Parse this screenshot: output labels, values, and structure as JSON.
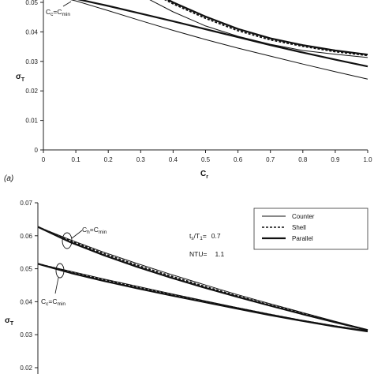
{
  "chart_data": [
    {
      "panel": "top",
      "type": "line",
      "xlabel": "C_r",
      "ylabel": "σ_T",
      "xlim": [
        0,
        1
      ],
      "ylim": [
        0,
        0.05
      ],
      "x_ticks": [
        "0",
        "0.1",
        "0.2",
        "0.3",
        "0.4",
        "0.5",
        "0.6",
        "0.7",
        "0.8",
        "0.9",
        "1.0"
      ],
      "y_ticks": [
        "0",
        "0.01",
        "0.02",
        "0.03",
        "0.04",
        "0.05"
      ],
      "panel_label": "(a)",
      "annotation": {
        "sub": "c",
        "rhs": "min",
        "pre": "C",
        "eq": "=C"
      },
      "series": [
        {
          "style": "thin",
          "x": [
            0.05,
            0.1,
            0.2,
            0.3,
            0.4,
            0.5,
            0.6,
            0.7,
            0.8,
            0.9,
            1.0
          ],
          "y": [
            0.0518,
            0.0505,
            0.0472,
            0.0438,
            0.0405,
            0.0374,
            0.0345,
            0.0318,
            0.0291,
            0.0265,
            0.024
          ]
        },
        {
          "style": "thick",
          "x": [
            0.05,
            0.1,
            0.2,
            0.3,
            0.4,
            0.5,
            0.6,
            0.7,
            0.8,
            0.9,
            1.0
          ],
          "y": [
            0.0522,
            0.0512,
            0.0488,
            0.0462,
            0.0436,
            0.0409,
            0.0382,
            0.0355,
            0.033,
            0.0306,
            0.0283
          ]
        },
        {
          "style": "thin",
          "x": [
            0.29,
            0.3,
            0.4,
            0.5,
            0.6,
            0.7,
            0.8,
            0.9,
            1.0
          ],
          "y": [
            0.0535,
            0.0525,
            0.0468,
            0.042,
            0.0385,
            0.0358,
            0.0337,
            0.0324,
            0.0313
          ]
        },
        {
          "style": "dashed",
          "x": [
            0.33,
            0.4,
            0.5,
            0.6,
            0.7,
            0.8,
            0.9,
            1.0
          ],
          "y": [
            0.0535,
            0.0495,
            0.0446,
            0.0404,
            0.0373,
            0.0351,
            0.0333,
            0.032
          ]
        },
        {
          "style": "thick",
          "x": [
            0.34,
            0.4,
            0.5,
            0.6,
            0.7,
            0.8,
            0.9,
            1.0
          ],
          "y": [
            0.0535,
            0.05,
            0.0452,
            0.041,
            0.0378,
            0.0355,
            0.0337,
            0.0323
          ]
        }
      ]
    },
    {
      "panel": "bottom",
      "type": "line",
      "xlabel": "",
      "ylabel": "σ_T",
      "xlim": [
        0,
        1
      ],
      "ylim": [
        0.02,
        0.07
      ],
      "y_ticks": [
        "0.02",
        "0.03",
        "0.04",
        "0.05",
        "0.06",
        "0.07"
      ],
      "params": [
        {
          "pre": "t",
          "sub1": "s",
          "mid": "/T",
          "sub2": "1",
          "eq": "=",
          "val": "0.7"
        },
        {
          "pre": "NTU",
          "sub1": "",
          "mid": "",
          "sub2": "",
          "eq": "=",
          "val": "1.1"
        }
      ],
      "legend": {
        "placement": "top-right",
        "entries": [
          "Counter",
          "Shell",
          "Parallel"
        ]
      },
      "annotations": [
        {
          "pre": "C",
          "sub": "h",
          "eq": "=C",
          "rhs": "min"
        },
        {
          "pre": "C",
          "sub": "c",
          "eq": "=C",
          "rhs": "min"
        }
      ],
      "series": [
        {
          "name": "Counter",
          "style": "thin",
          "x": [
            0,
            0.1,
            0.2,
            0.3,
            0.4,
            0.5,
            0.6,
            0.7,
            0.8,
            0.9,
            1.0
          ],
          "y": [
            0.0627,
            0.0587,
            0.055,
            0.0516,
            0.0484,
            0.0453,
            0.0423,
            0.0395,
            0.0368,
            0.0341,
            0.0315
          ]
        },
        {
          "name": "Shell",
          "style": "dashed",
          "x": [
            0,
            0.1,
            0.2,
            0.3,
            0.4,
            0.5,
            0.6,
            0.7,
            0.8,
            0.9,
            1.0
          ],
          "y": [
            0.0627,
            0.0584,
            0.0546,
            0.0511,
            0.0479,
            0.0448,
            0.0419,
            0.0391,
            0.0365,
            0.0339,
            0.0314
          ]
        },
        {
          "name": "Parallel",
          "style": "thick",
          "x": [
            0,
            0.1,
            0.2,
            0.3,
            0.4,
            0.5,
            0.6,
            0.7,
            0.8,
            0.9,
            1.0
          ],
          "y": [
            0.0627,
            0.058,
            0.0541,
            0.0506,
            0.0474,
            0.0444,
            0.0416,
            0.0389,
            0.0363,
            0.0338,
            0.0314
          ]
        },
        {
          "name": "Counter",
          "style": "thin",
          "x": [
            0,
            0.1,
            0.2,
            0.3,
            0.4,
            0.5,
            0.6,
            0.7,
            0.8,
            0.9,
            1.0
          ],
          "y": [
            0.0515,
            0.0492,
            0.0469,
            0.0447,
            0.0425,
            0.0404,
            0.0383,
            0.0363,
            0.0344,
            0.0327,
            0.0312
          ]
        },
        {
          "name": "Shell",
          "style": "dashed",
          "x": [
            0,
            0.1,
            0.2,
            0.3,
            0.4,
            0.5,
            0.6,
            0.7,
            0.8,
            0.9,
            1.0
          ],
          "y": [
            0.0515,
            0.049,
            0.0467,
            0.0445,
            0.0423,
            0.0402,
            0.0382,
            0.0362,
            0.0343,
            0.0326,
            0.0311
          ]
        },
        {
          "name": "Parallel",
          "style": "thick",
          "x": [
            0,
            0.1,
            0.2,
            0.3,
            0.4,
            0.5,
            0.6,
            0.7,
            0.8,
            0.9,
            1.0
          ],
          "y": [
            0.0515,
            0.0487,
            0.0463,
            0.0441,
            0.042,
            0.04,
            0.038,
            0.036,
            0.0342,
            0.0325,
            0.031
          ]
        }
      ]
    }
  ]
}
